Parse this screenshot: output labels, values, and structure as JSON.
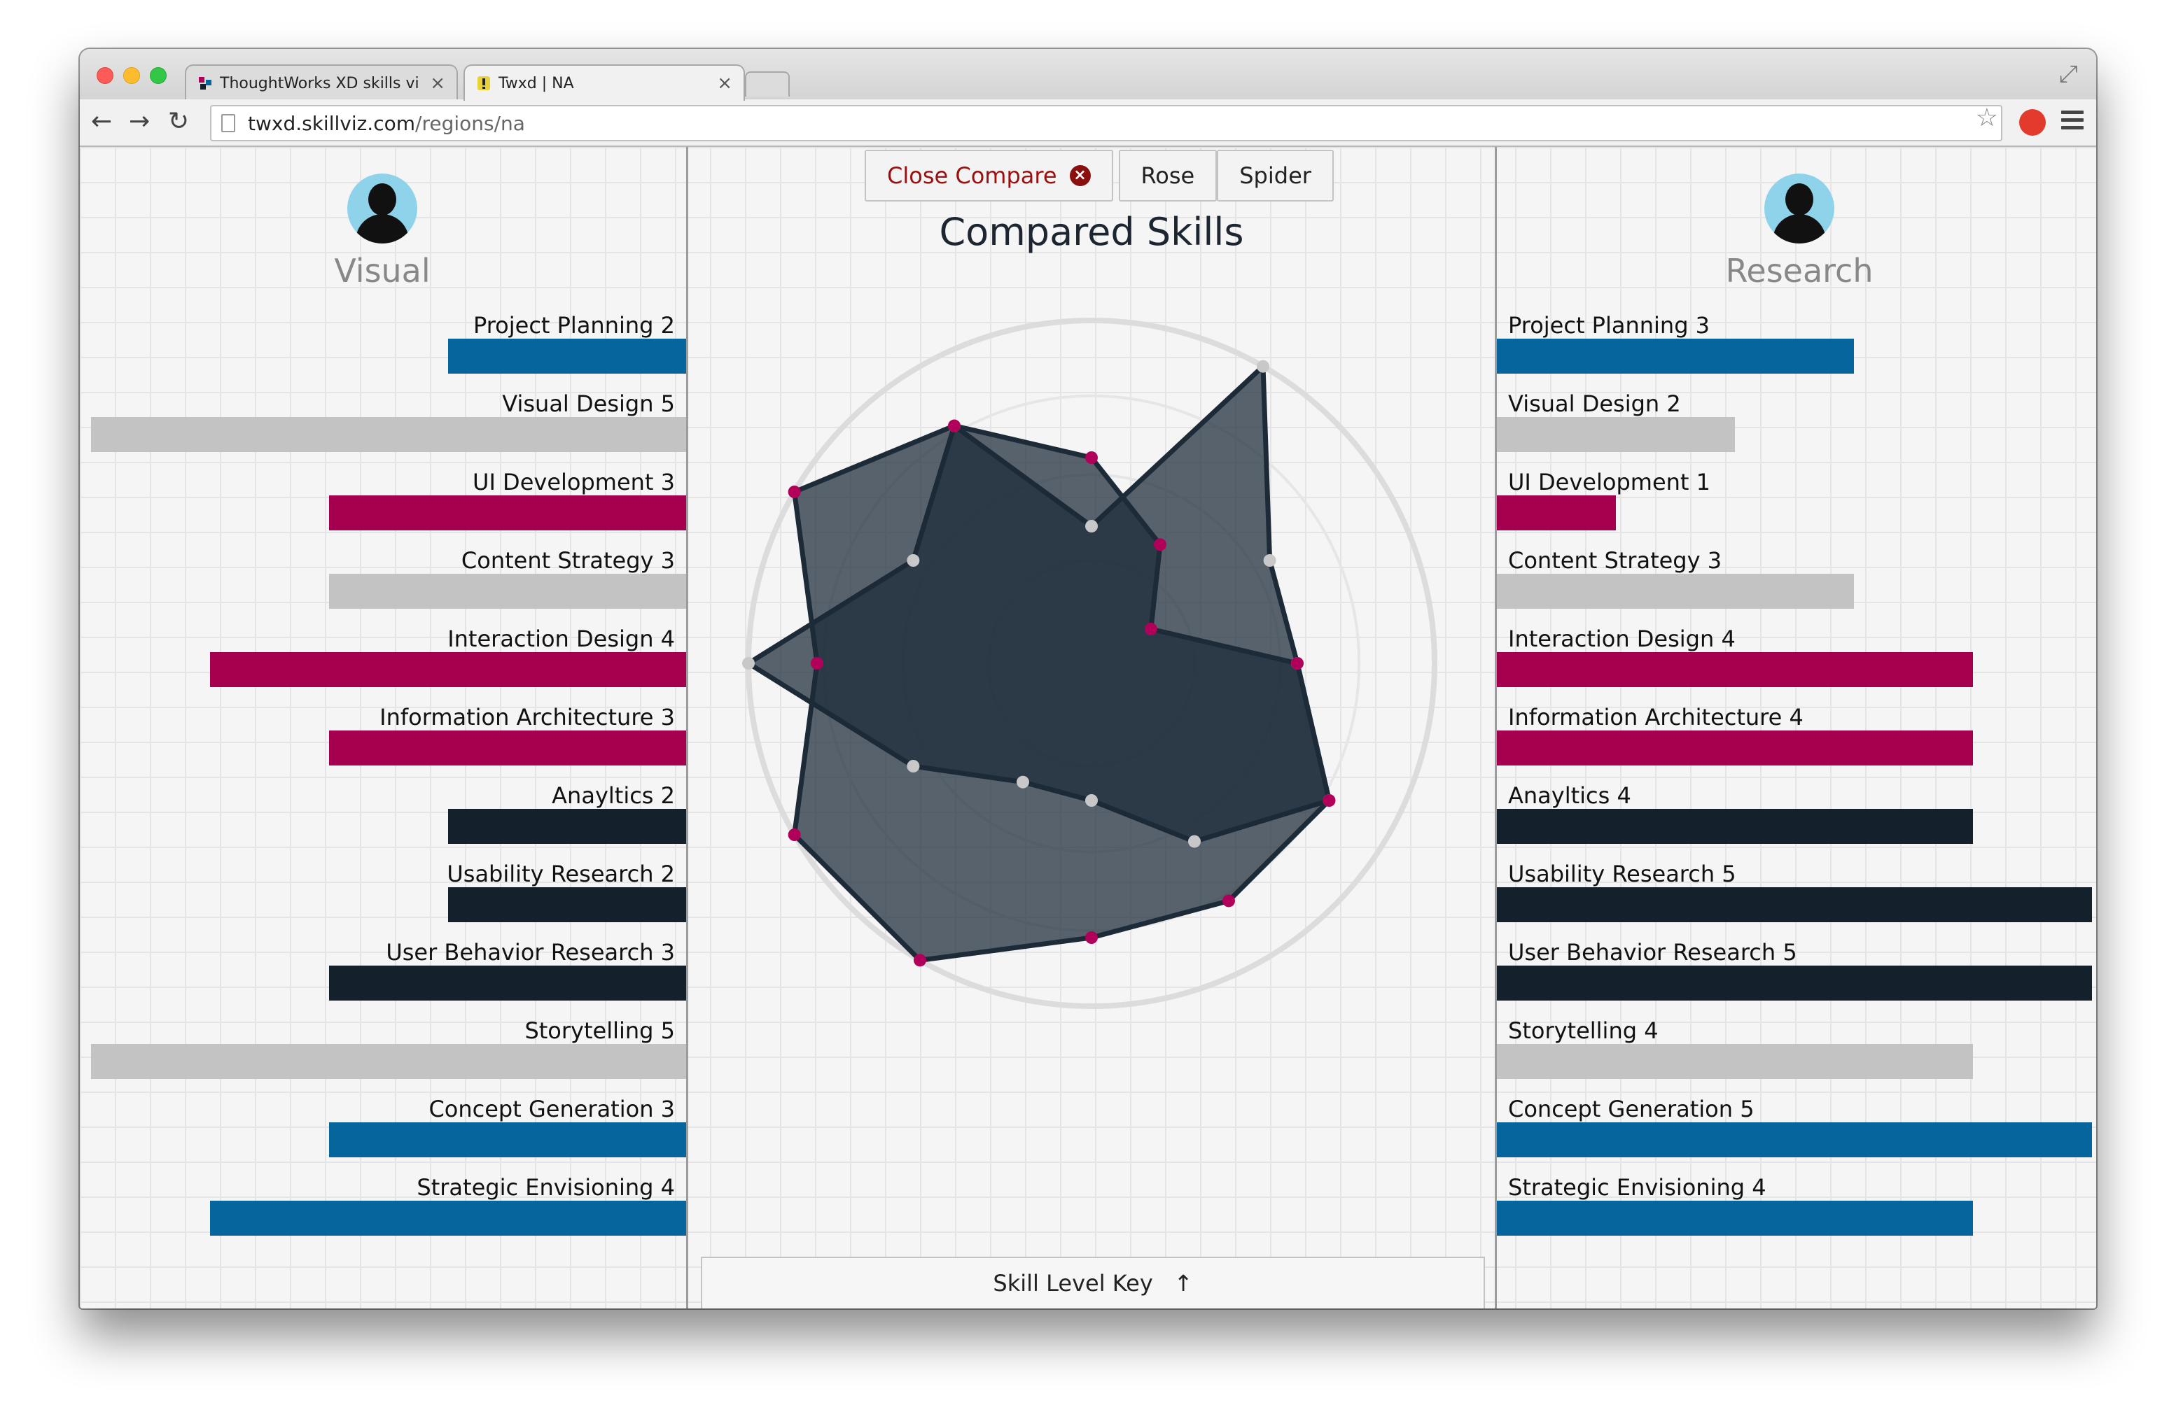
{
  "browser": {
    "tabs": [
      {
        "title": "ThoughtWorks XD skills vi"
      },
      {
        "title": "Twxd | NA"
      }
    ],
    "url_host": "twxd.skillviz.com",
    "url_path": "/regions/na"
  },
  "compare": {
    "close_label": "Close Compare",
    "rose_label": "Rose",
    "spider_label": "Spider",
    "title": "Compared Skills",
    "key_label": "Skill Level Key",
    "key_arrow": "↑"
  },
  "colors": {
    "blue": "#06659c",
    "gray": "#c3c3c3",
    "magenta": "#a4004f",
    "dark": "#14202b",
    "point_gray": "#c8c8c8",
    "point_magenta": "#b1005a",
    "shape_fill": "#1c2a38",
    "outline": "#1d2a38"
  },
  "left_person": {
    "name": "Visual",
    "skills": [
      {
        "label": "Project Planning 2",
        "level": 2,
        "color": "blue"
      },
      {
        "label": "Visual Design 5",
        "level": 5,
        "color": "gray"
      },
      {
        "label": "UI Development 3",
        "level": 3,
        "color": "magenta"
      },
      {
        "label": "Content Strategy 3",
        "level": 3,
        "color": "gray"
      },
      {
        "label": "Interaction Design 4",
        "level": 4,
        "color": "magenta"
      },
      {
        "label": "Information Architecture 3",
        "level": 3,
        "color": "magenta"
      },
      {
        "label": "Anayltics 2",
        "level": 2,
        "color": "dark"
      },
      {
        "label": "Usability Research 2",
        "level": 2,
        "color": "dark"
      },
      {
        "label": "User Behavior Research 3",
        "level": 3,
        "color": "dark"
      },
      {
        "label": "Storytelling 5",
        "level": 5,
        "color": "gray"
      },
      {
        "label": "Concept Generation 3",
        "level": 3,
        "color": "blue"
      },
      {
        "label": "Strategic Envisioning 4",
        "level": 4,
        "color": "blue"
      }
    ]
  },
  "right_person": {
    "name": "Research",
    "skills": [
      {
        "label": "Project Planning 3",
        "level": 3,
        "color": "blue"
      },
      {
        "label": "Visual Design 2",
        "level": 2,
        "color": "gray"
      },
      {
        "label": "UI Development 1",
        "level": 1,
        "color": "magenta"
      },
      {
        "label": "Content Strategy 3",
        "level": 3,
        "color": "gray"
      },
      {
        "label": "Interaction Design 4",
        "level": 4,
        "color": "magenta"
      },
      {
        "label": "Information Architecture 4",
        "level": 4,
        "color": "magenta"
      },
      {
        "label": "Anayltics 4",
        "level": 4,
        "color": "dark"
      },
      {
        "label": "Usability Research 5",
        "level": 5,
        "color": "dark"
      },
      {
        "label": "User Behavior Research 5",
        "level": 5,
        "color": "dark"
      },
      {
        "label": "Storytelling 4",
        "level": 4,
        "color": "gray"
      },
      {
        "label": "Concept Generation 5",
        "level": 5,
        "color": "blue"
      },
      {
        "label": "Strategic Envisioning 4",
        "level": 4,
        "color": "blue"
      }
    ]
  },
  "chart_data": {
    "type": "radar",
    "max_level": 5,
    "series": [
      {
        "name": "Visual",
        "values": [
          2,
          5,
          3,
          3,
          4,
          3,
          2,
          2,
          3,
          5,
          3,
          4
        ]
      },
      {
        "name": "Research",
        "values": [
          3,
          2,
          1,
          3,
          4,
          4,
          4,
          5,
          5,
          4,
          5,
          4
        ]
      }
    ]
  }
}
